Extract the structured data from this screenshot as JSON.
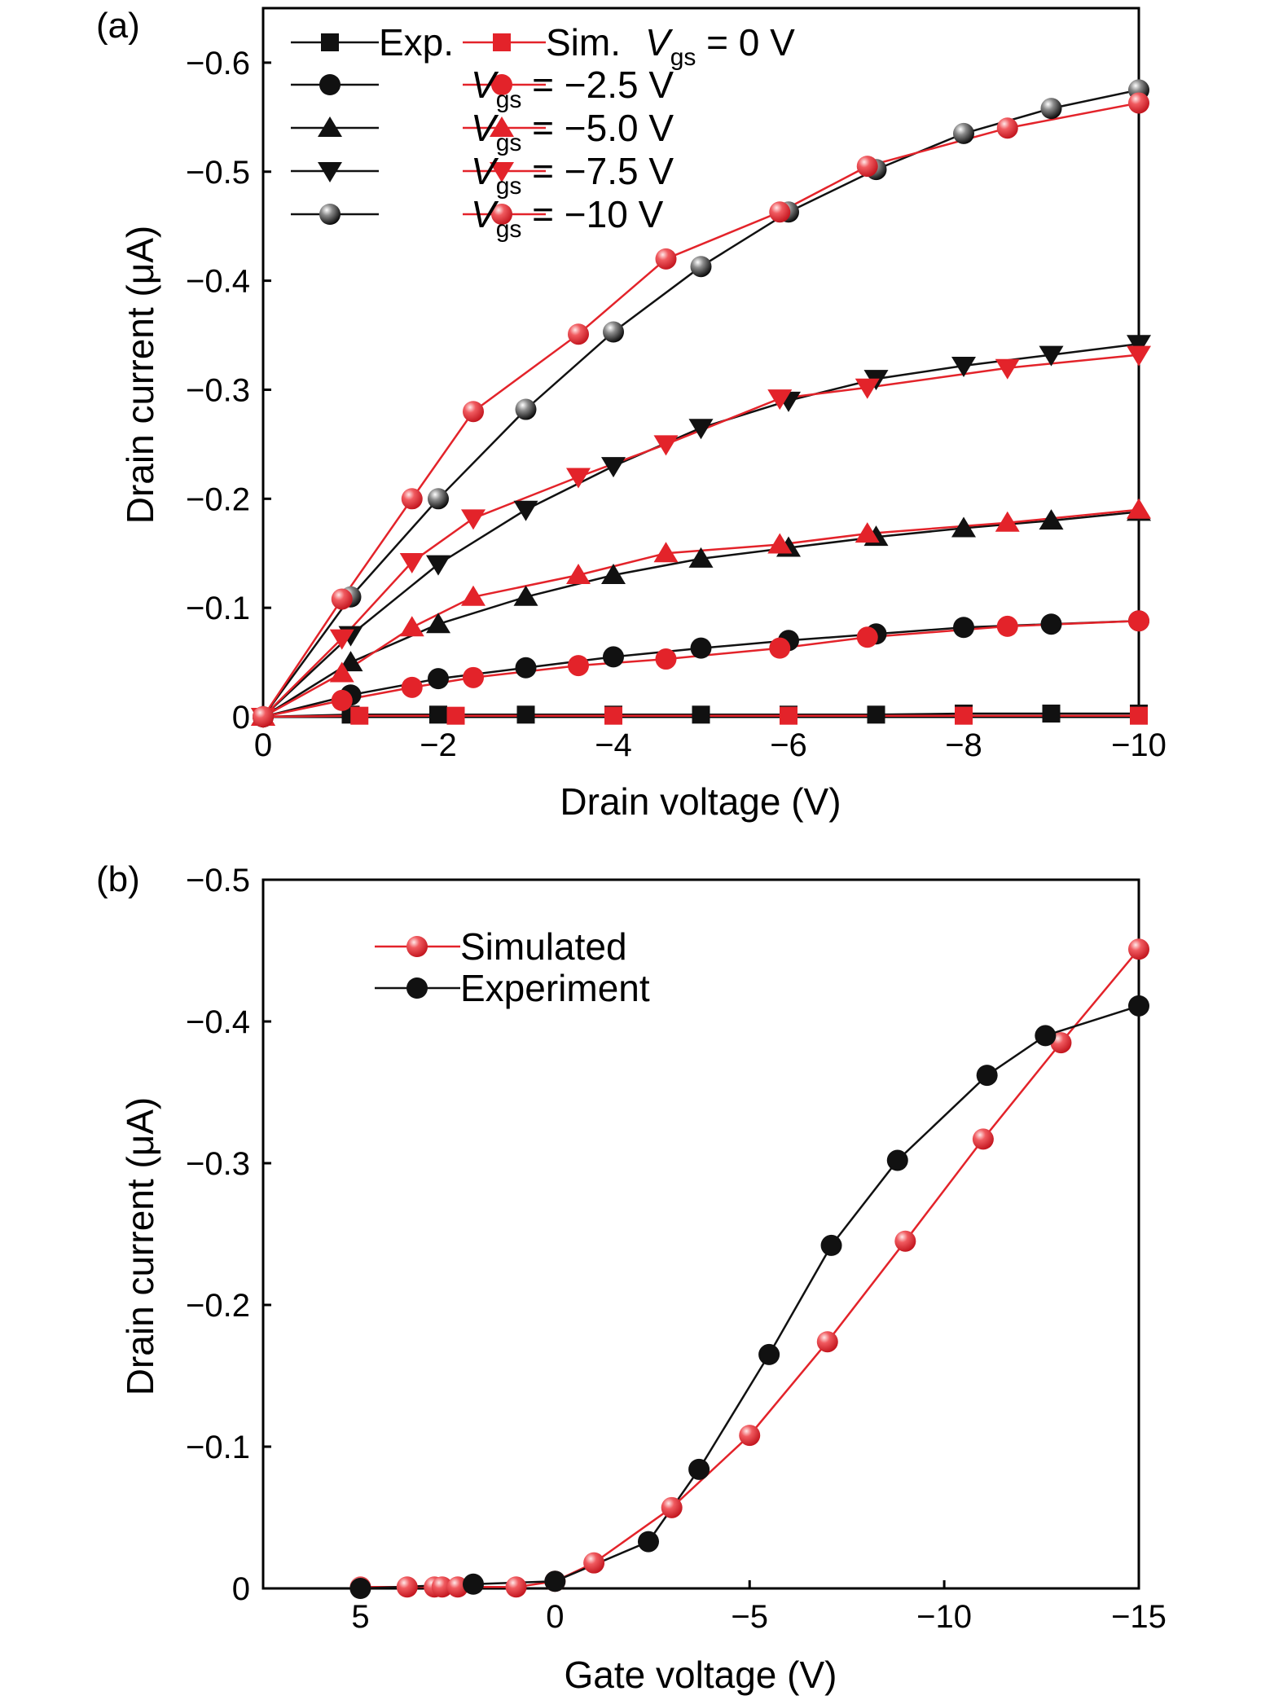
{
  "panels": [
    {
      "id": "a",
      "label": "(a)",
      "xlabel": "Drain voltage (V)",
      "ylabel": "Drain current (μA)",
      "xlim": [
        0,
        -10
      ],
      "ylim": [
        0,
        -0.65
      ],
      "xticks": [
        0,
        -2,
        -4,
        -6,
        -8,
        -10
      ],
      "xtick_labels": [
        "0",
        "−2",
        "−4",
        "−6",
        "−8",
        "−10"
      ],
      "yticks": [
        0,
        -0.1,
        -0.2,
        -0.3,
        -0.4,
        -0.5,
        -0.6
      ],
      "ytick_labels": [
        "0",
        "−0.1",
        "−0.2",
        "−0.3",
        "−0.4",
        "−0.5",
        "−0.6"
      ],
      "legend": {
        "exp_label": "Exp.",
        "sim_label": "Sim.",
        "rows": [
          {
            "marker": "square",
            "italic": "V",
            "sub": "gs",
            "suffix": " = 0 V"
          },
          {
            "marker": "circle",
            "italic": "V",
            "sub": "gs",
            "suffix": " = −2.5 V"
          },
          {
            "marker": "triangle-up",
            "italic": "V",
            "sub": "gs",
            "suffix": " = −5.0 V"
          },
          {
            "marker": "triangle-down",
            "italic": "V",
            "sub": "gs",
            "suffix": " = −7.5 V"
          },
          {
            "marker": "sphere",
            "italic": "V",
            "sub": "gs",
            "suffix": " = −10 V"
          }
        ]
      }
    },
    {
      "id": "b",
      "label": "(b)",
      "xlabel": "Gate voltage (V)",
      "ylabel": "Drain current (μA)",
      "xlim": [
        7.5,
        -15
      ],
      "ylim": [
        0,
        -0.5
      ],
      "xticks": [
        5,
        0,
        -5,
        -10,
        -15
      ],
      "xtick_labels": [
        "5",
        "0",
        "−5",
        "−10",
        "−15"
      ],
      "yticks": [
        0,
        -0.1,
        -0.2,
        -0.3,
        -0.4,
        -0.5
      ],
      "ytick_labels": [
        "0",
        "−0.1",
        "−0.2",
        "−0.3",
        "−0.4",
        "−0.5"
      ],
      "legend": {
        "rows": [
          {
            "text": "Simulated",
            "series": "sim"
          },
          {
            "text": "Experiment",
            "series": "exp"
          }
        ]
      }
    }
  ],
  "colors": {
    "experiment": "#111111",
    "simulation": "#e3232a"
  },
  "chart_data": [
    {
      "type": "line",
      "series": [
        {
          "group": "exp",
          "marker": "square",
          "x": [
            0,
            -1,
            -2,
            -3,
            -4,
            -5,
            -6,
            -7,
            -8,
            -9,
            -10
          ],
          "y": [
            0,
            -0.002,
            -0.002,
            -0.002,
            -0.002,
            -0.002,
            -0.002,
            -0.002,
            -0.003,
            -0.003,
            -0.003
          ]
        },
        {
          "group": "sim",
          "marker": "square",
          "x": [
            0,
            -1.1,
            -2.2,
            -4,
            -6,
            -8,
            -10
          ],
          "y": [
            0,
            -0.001,
            -0.001,
            -0.001,
            -0.001,
            -0.001,
            -0.001
          ]
        },
        {
          "group": "exp",
          "marker": "circle",
          "x": [
            0,
            -1,
            -2,
            -3,
            -4,
            -5,
            -6,
            -7,
            -8,
            -9,
            -10
          ],
          "y": [
            0,
            -0.02,
            -0.035,
            -0.045,
            -0.055,
            -0.063,
            -0.07,
            -0.076,
            -0.082,
            -0.085,
            -0.088
          ]
        },
        {
          "group": "sim",
          "marker": "circle",
          "x": [
            0,
            -0.9,
            -1.7,
            -2.4,
            -3.6,
            -4.6,
            -5.9,
            -6.9,
            -8.5,
            -10
          ],
          "y": [
            0,
            -0.015,
            -0.027,
            -0.036,
            -0.047,
            -0.053,
            -0.063,
            -0.073,
            -0.083,
            -0.088
          ]
        },
        {
          "group": "exp",
          "marker": "triangle-up",
          "x": [
            0,
            -1,
            -2,
            -3,
            -4,
            -5,
            -6,
            -7,
            -8,
            -9,
            -10
          ],
          "y": [
            0,
            -0.05,
            -0.085,
            -0.11,
            -0.13,
            -0.145,
            -0.155,
            -0.165,
            -0.173,
            -0.18,
            -0.188
          ]
        },
        {
          "group": "sim",
          "marker": "triangle-up",
          "x": [
            0,
            -0.9,
            -1.7,
            -2.4,
            -3.6,
            -4.6,
            -5.9,
            -6.9,
            -8.5,
            -10
          ],
          "y": [
            0,
            -0.04,
            -0.082,
            -0.11,
            -0.13,
            -0.15,
            -0.158,
            -0.168,
            -0.178,
            -0.19
          ]
        },
        {
          "group": "exp",
          "marker": "triangle-down",
          "x": [
            0,
            -1,
            -2,
            -3,
            -4,
            -5,
            -6,
            -7,
            -8,
            -9,
            -10
          ],
          "y": [
            0,
            -0.075,
            -0.14,
            -0.19,
            -0.23,
            -0.265,
            -0.29,
            -0.31,
            -0.322,
            -0.332,
            -0.342
          ]
        },
        {
          "group": "sim",
          "marker": "triangle-down",
          "x": [
            0,
            -0.9,
            -1.7,
            -2.4,
            -3.6,
            -4.6,
            -5.9,
            -6.9,
            -8.5,
            -10
          ],
          "y": [
            0,
            -0.072,
            -0.142,
            -0.182,
            -0.22,
            -0.25,
            -0.292,
            -0.302,
            -0.32,
            -0.332
          ]
        },
        {
          "group": "exp",
          "marker": "sphere",
          "x": [
            0,
            -1,
            -2,
            -3,
            -4,
            -5,
            -6,
            -7,
            -8,
            -9,
            -10
          ],
          "y": [
            0,
            -0.11,
            -0.2,
            -0.282,
            -0.353,
            -0.413,
            -0.463,
            -0.502,
            -0.535,
            -0.558,
            -0.575
          ]
        },
        {
          "group": "sim",
          "marker": "sphere",
          "x": [
            0,
            -0.9,
            -1.7,
            -2.4,
            -3.6,
            -4.6,
            -5.9,
            -6.9,
            -8.5,
            -10
          ],
          "y": [
            0,
            -0.108,
            -0.2,
            -0.28,
            -0.351,
            -0.42,
            -0.463,
            -0.505,
            -0.54,
            -0.563
          ]
        }
      ]
    },
    {
      "type": "line",
      "series": [
        {
          "name": "Simulated",
          "group": "sim",
          "marker": "sphere",
          "x": [
            5,
            3.8,
            3.1,
            2.9,
            2.5,
            1,
            0,
            -1,
            -3,
            -5,
            -7,
            -9,
            -11,
            -13,
            -15
          ],
          "y": [
            -0.001,
            -0.001,
            -0.001,
            -0.001,
            -0.001,
            -0.001,
            -0.005,
            -0.018,
            -0.057,
            -0.108,
            -0.174,
            -0.245,
            -0.317,
            -0.385,
            -0.451
          ]
        },
        {
          "name": "Experiment",
          "group": "exp",
          "marker": "circle",
          "x": [
            5,
            2.1,
            0,
            -2.4,
            -3.7,
            -5.5,
            -7.1,
            -8.8,
            -11.1,
            -12.6,
            -15
          ],
          "y": [
            0,
            -0.003,
            -0.005,
            -0.033,
            -0.084,
            -0.165,
            -0.242,
            -0.302,
            -0.362,
            -0.39,
            -0.411
          ]
        }
      ]
    }
  ]
}
